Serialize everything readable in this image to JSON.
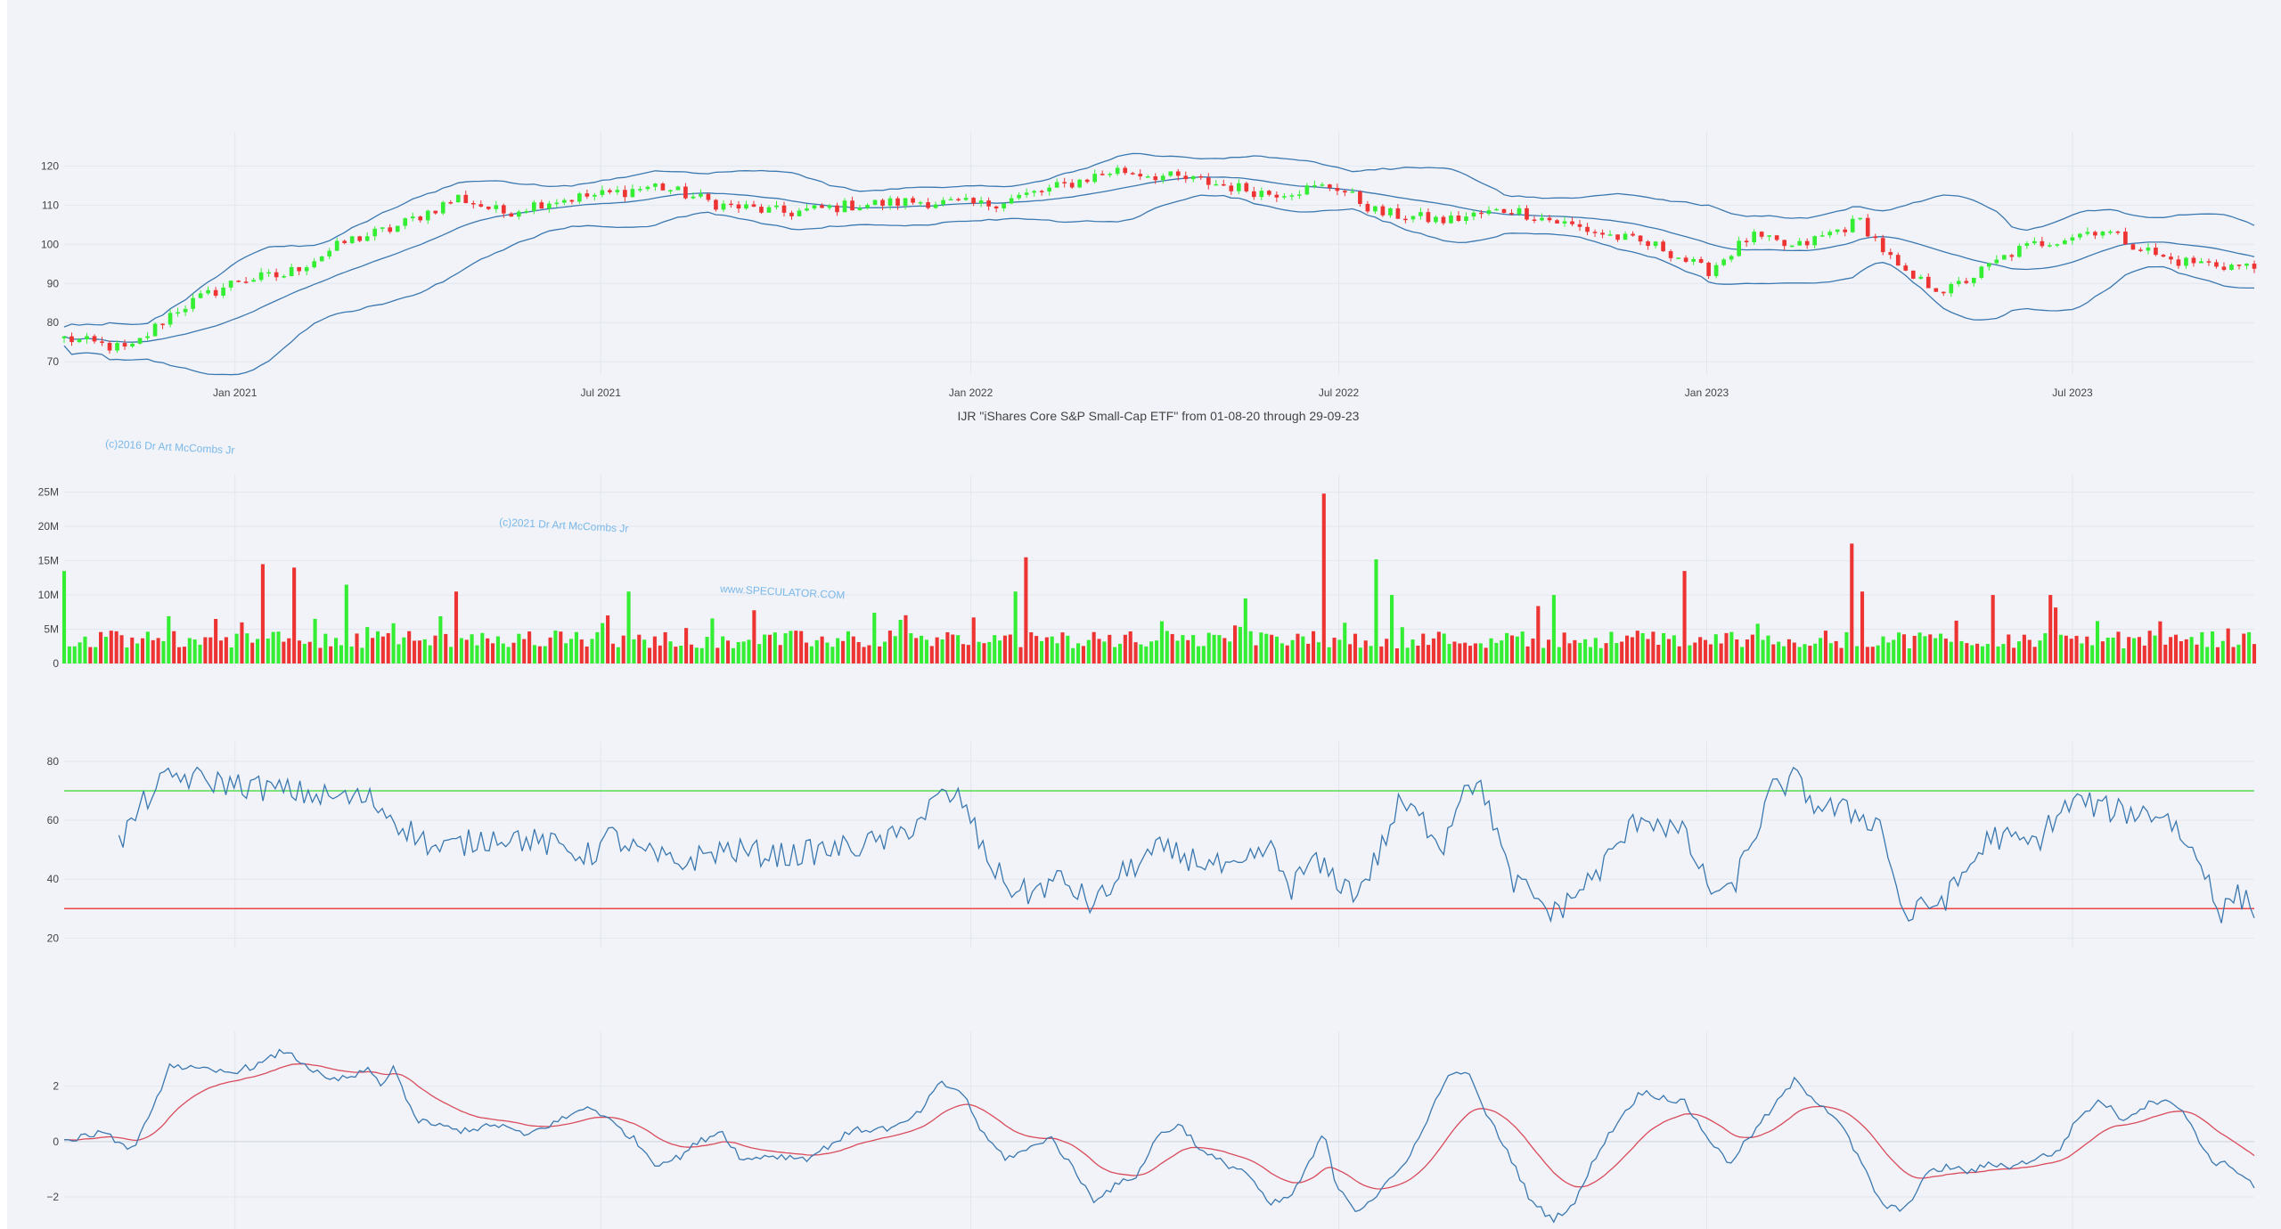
{
  "title": "IJR \"iShares Core S&P Small-Cap ETF\" from 01-08-20 through 29-09-23",
  "watermarks": {
    "line1": "(c)2016 Dr Art McCombs Jr",
    "line2": "(c)2021 Dr Art McCombs Jr",
    "line3": "www.SPECULATOR.COM"
  },
  "colors": {
    "up": "#33ee33",
    "down": "#ee3333",
    "line": "#3b78b0",
    "signal": "#d94b5b",
    "overbought": "#55dd55",
    "oversold": "#ee4444",
    "watermark": "#7ab8e8"
  },
  "chart_data": [
    {
      "id": "price",
      "type": "candlestick",
      "title": "IJR \"iShares Core S&P Small-Cap ETF\" from 01-08-20 through 29-09-23",
      "ylim": [
        68,
        126
      ],
      "yticks": [
        "70",
        "80",
        "90",
        "100",
        "110",
        "120"
      ],
      "xticks": [
        "Jan 2021",
        "Jul 2021",
        "Jan 2022",
        "Jul 2022",
        "Jan 2023",
        "Jul 2023"
      ],
      "series": [
        {
          "name": "",
          "kind": "ohlc",
          "anchors": [
            [
              0,
              76
            ],
            [
              0.02,
              74
            ],
            [
              0.03,
              73
            ],
            [
              0.05,
              83
            ],
            [
              0.08,
              91
            ],
            [
              0.1,
              92
            ],
            [
              0.13,
              101
            ],
            [
              0.15,
              104
            ],
            [
              0.18,
              112
            ],
            [
              0.2,
              108
            ],
            [
              0.22,
              111
            ],
            [
              0.25,
              113
            ],
            [
              0.27,
              115
            ],
            [
              0.3,
              110
            ],
            [
              0.33,
              108
            ],
            [
              0.36,
              110
            ],
            [
              0.39,
              111
            ],
            [
              0.42,
              110
            ],
            [
              0.45,
              114
            ],
            [
              0.48,
              119
            ],
            [
              0.52,
              116
            ],
            [
              0.55,
              113
            ],
            [
              0.58,
              115
            ],
            [
              0.6,
              108
            ],
            [
              0.63,
              106
            ],
            [
              0.66,
              109
            ],
            [
              0.7,
              103
            ],
            [
              0.73,
              99
            ],
            [
              0.75,
              93
            ],
            [
              0.77,
              102
            ],
            [
              0.79,
              99
            ],
            [
              0.82,
              106
            ],
            [
              0.84,
              92
            ],
            [
              0.86,
              88
            ],
            [
              0.89,
              98
            ],
            [
              0.9,
              100
            ],
            [
              0.93,
              104
            ],
            [
              0.96,
              96
            ],
            [
              1,
              94
            ]
          ]
        },
        {
          "name": "",
          "kind": "band-upper"
        },
        {
          "name": "",
          "kind": "band-mid"
        },
        {
          "name": "",
          "kind": "band-lower"
        }
      ]
    },
    {
      "id": "volume",
      "type": "bar",
      "ylim": [
        0,
        26000000
      ],
      "yticks": [
        "0",
        "5M",
        "10M",
        "15M",
        "20M",
        "25M"
      ],
      "spikes": [
        [
          0.0,
          13500000
        ],
        [
          0.09,
          14500000
        ],
        [
          0.105,
          14000000
        ],
        [
          0.128,
          11500000
        ],
        [
          0.18,
          10500000
        ],
        [
          0.258,
          10500000
        ],
        [
          0.435,
          10500000
        ],
        [
          0.438,
          15500000
        ],
        [
          0.54,
          9500000
        ],
        [
          0.574,
          24800000
        ],
        [
          0.6,
          15200000
        ],
        [
          0.606,
          10000000
        ],
        [
          0.68,
          10000000
        ],
        [
          0.74,
          13500000
        ],
        [
          0.816,
          17500000
        ],
        [
          0.82,
          10500000
        ],
        [
          0.88,
          10000000
        ],
        [
          0.906,
          10000000
        ]
      ]
    },
    {
      "id": "rsi",
      "type": "line",
      "ylim": [
        18,
        83
      ],
      "yticks": [
        "20",
        "40",
        "60",
        "80"
      ],
      "overbought": 70,
      "oversold": 30,
      "series": [
        {
          "name": "",
          "anchors": [
            [
              0.025,
              52
            ],
            [
              0.04,
              70
            ],
            [
              0.05,
              75
            ],
            [
              0.08,
              72
            ],
            [
              0.1,
              70
            ],
            [
              0.12,
              68
            ],
            [
              0.14,
              67
            ],
            [
              0.155,
              58
            ],
            [
              0.17,
              50
            ],
            [
              0.2,
              55
            ],
            [
              0.22,
              52
            ],
            [
              0.24,
              48
            ],
            [
              0.25,
              55
            ],
            [
              0.26,
              50
            ],
            [
              0.28,
              45
            ],
            [
              0.3,
              50
            ],
            [
              0.33,
              48
            ],
            [
              0.36,
              51
            ],
            [
              0.38,
              54
            ],
            [
              0.39,
              60
            ],
            [
              0.4,
              68
            ],
            [
              0.41,
              67
            ],
            [
              0.42,
              49
            ],
            [
              0.43,
              38
            ],
            [
              0.44,
              35
            ],
            [
              0.455,
              40
            ],
            [
              0.47,
              31
            ],
            [
              0.485,
              43
            ],
            [
              0.5,
              50
            ],
            [
              0.52,
              46
            ],
            [
              0.535,
              42
            ],
            [
              0.55,
              51
            ],
            [
              0.56,
              37
            ],
            [
              0.57,
              46
            ],
            [
              0.59,
              35
            ],
            [
              0.6,
              48
            ],
            [
              0.61,
              66
            ],
            [
              0.62,
              60
            ],
            [
              0.63,
              52
            ],
            [
              0.64,
              75
            ],
            [
              0.65,
              67
            ],
            [
              0.66,
              40
            ],
            [
              0.67,
              35
            ],
            [
              0.68,
              28
            ],
            [
              0.7,
              42
            ],
            [
              0.72,
              62
            ],
            [
              0.74,
              55
            ],
            [
              0.75,
              38
            ],
            [
              0.76,
              34
            ],
            [
              0.77,
              52
            ],
            [
              0.78,
              70
            ],
            [
              0.79,
              74
            ],
            [
              0.8,
              65
            ],
            [
              0.82,
              62
            ],
            [
              0.83,
              58
            ],
            [
              0.84,
              27
            ],
            [
              0.86,
              34
            ],
            [
              0.88,
              55
            ],
            [
              0.89,
              53
            ],
            [
              0.9,
              52
            ],
            [
              0.91,
              62
            ],
            [
              0.92,
              67
            ],
            [
              0.93,
              64
            ],
            [
              0.94,
              63
            ],
            [
              0.96,
              62
            ],
            [
              0.98,
              40
            ],
            [
              0.985,
              27
            ],
            [
              0.99,
              35
            ],
            [
              1,
              31
            ]
          ]
        }
      ]
    },
    {
      "id": "oscillator",
      "type": "line",
      "ylim": [
        -3,
        3.6
      ],
      "yticks": [
        "2",
        "0",
        "−2"
      ],
      "series": [
        {
          "name": "",
          "anchors": [
            [
              0,
              0
            ],
            [
              0.015,
              0.3
            ],
            [
              0.025,
              0.05
            ],
            [
              0.03,
              -0.4
            ],
            [
              0.04,
              1
            ],
            [
              0.048,
              2.8
            ],
            [
              0.06,
              2.6
            ],
            [
              0.075,
              2.5
            ],
            [
              0.09,
              2.8
            ],
            [
              0.1,
              3.3
            ],
            [
              0.11,
              2.8
            ],
            [
              0.12,
              2.2
            ],
            [
              0.13,
              2.3
            ],
            [
              0.14,
              2.6
            ],
            [
              0.145,
              1.9
            ],
            [
              0.15,
              2.8
            ],
            [
              0.16,
              0.8
            ],
            [
              0.18,
              0.4
            ],
            [
              0.2,
              0.6
            ],
            [
              0.21,
              0.2
            ],
            [
              0.23,
              0.9
            ],
            [
              0.24,
              1.3
            ],
            [
              0.25,
              0.7
            ],
            [
              0.26,
              0.1
            ],
            [
              0.27,
              -0.8
            ],
            [
              0.28,
              -0.6
            ],
            [
              0.29,
              0
            ],
            [
              0.3,
              0.4
            ],
            [
              0.31,
              -0.7
            ],
            [
              0.32,
              -0.5
            ],
            [
              0.34,
              -0.6
            ],
            [
              0.36,
              0.4
            ],
            [
              0.38,
              0.5
            ],
            [
              0.39,
              1.0
            ],
            [
              0.4,
              2.1
            ],
            [
              0.41,
              1.8
            ],
            [
              0.42,
              0.2
            ],
            [
              0.43,
              -0.6
            ],
            [
              0.44,
              -0.3
            ],
            [
              0.45,
              0.2
            ],
            [
              0.46,
              -0.9
            ],
            [
              0.47,
              -2.1
            ],
            [
              0.48,
              -1.6
            ],
            [
              0.49,
              -1.2
            ],
            [
              0.5,
              0.3
            ],
            [
              0.51,
              0.6
            ],
            [
              0.52,
              -0.4
            ],
            [
              0.53,
              -0.8
            ],
            [
              0.54,
              -1.1
            ],
            [
              0.55,
              -2.3
            ],
            [
              0.56,
              -2.0
            ],
            [
              0.57,
              -0.6
            ],
            [
              0.575,
              0.4
            ],
            [
              0.58,
              -1.4
            ],
            [
              0.59,
              -2.5
            ],
            [
              0.6,
              -1.9
            ],
            [
              0.61,
              -1.0
            ],
            [
              0.62,
              0.3
            ],
            [
              0.63,
              2.2
            ],
            [
              0.64,
              2.6
            ],
            [
              0.65,
              0.9
            ],
            [
              0.66,
              -0.5
            ],
            [
              0.67,
              -2.2
            ],
            [
              0.68,
              -2.8
            ],
            [
              0.69,
              -2.2
            ],
            [
              0.7,
              -0.4
            ],
            [
              0.71,
              0.8
            ],
            [
              0.72,
              1.8
            ],
            [
              0.73,
              1.6
            ],
            [
              0.74,
              1.4
            ],
            [
              0.75,
              0.2
            ],
            [
              0.76,
              -0.8
            ],
            [
              0.77,
              0.2
            ],
            [
              0.78,
              1.2
            ],
            [
              0.79,
              2.2
            ],
            [
              0.8,
              1.5
            ],
            [
              0.81,
              0.8
            ],
            [
              0.82,
              -0.7
            ],
            [
              0.83,
              -2.3
            ],
            [
              0.84,
              -2.5
            ],
            [
              0.85,
              -1.2
            ],
            [
              0.86,
              -0.9
            ],
            [
              0.87,
              -1.1
            ],
            [
              0.88,
              -0.8
            ],
            [
              0.89,
              -0.9
            ],
            [
              0.9,
              -0.6
            ],
            [
              0.91,
              -0.4
            ],
            [
              0.92,
              0.9
            ],
            [
              0.93,
              1.5
            ],
            [
              0.94,
              0.8
            ],
            [
              0.95,
              1.3
            ],
            [
              0.96,
              1.6
            ],
            [
              0.97,
              0.8
            ],
            [
              0.98,
              -0.7
            ],
            [
              0.99,
              -0.9
            ],
            [
              1,
              -1.6
            ]
          ]
        },
        {
          "name": "",
          "kind": "signal"
        }
      ]
    }
  ]
}
